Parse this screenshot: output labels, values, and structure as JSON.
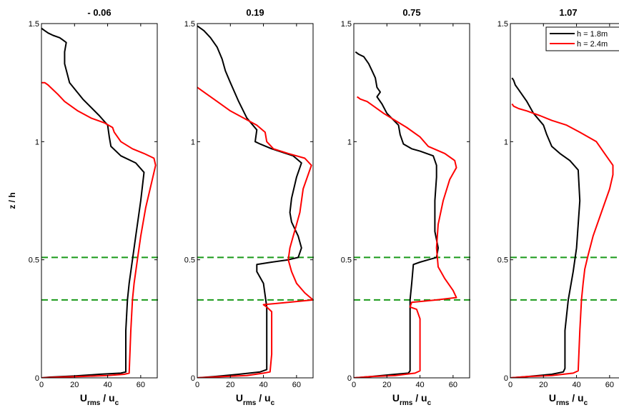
{
  "chart_data": {
    "type": "line",
    "ylabel": "z / h",
    "xlabel_main": "U",
    "xlabel_sub": "rms",
    "xlabel_sep": " / u",
    "xlabel_sub2": "c",
    "xlim": [
      0,
      70
    ],
    "ylim": [
      0,
      1.5
    ],
    "xticks": [
      "0",
      "20",
      "40",
      "60"
    ],
    "xtick_values": [
      0,
      20,
      40,
      60
    ],
    "yticks": [
      "0",
      "0.5",
      "1",
      "1.5"
    ],
    "ytick_values": [
      0,
      0.5,
      1,
      1.5
    ],
    "hlines": [
      0.33,
      0.51
    ],
    "colors": {
      "black": "#000000",
      "red": "#ff0000",
      "green": "#1a9a1a"
    },
    "legend": {
      "placement": "top-right",
      "entries": [
        {
          "label": "h = 1.8m",
          "color": "#000000"
        },
        {
          "label": "h = 2.4m",
          "color": "#ff0000"
        }
      ]
    },
    "panels": [
      {
        "title": "- 0.06",
        "series": [
          {
            "label": "h = 1.8m",
            "color": "#000000",
            "x": [
              0,
              5,
              20,
              35,
              48,
              51,
              51,
              52,
              53,
              55,
              57,
              60,
              62,
              57,
              48,
              42,
              41,
              40,
              35,
              25,
              17,
              14,
              14,
              15,
              13,
              11,
              7,
              4,
              2,
              0
            ],
            "z": [
              0,
              0.003,
              0.008,
              0.015,
              0.02,
              0.025,
              0.2,
              0.33,
              0.4,
              0.5,
              0.6,
              0.75,
              0.87,
              0.91,
              0.94,
              0.98,
              1.02,
              1.07,
              1.11,
              1.18,
              1.25,
              1.33,
              1.38,
              1.42,
              1.43,
              1.44,
              1.45,
              1.46,
              1.47,
              1.48
            ]
          },
          {
            "label": "h = 2.4m",
            "color": "#ff0000",
            "x": [
              0,
              10,
              25,
              40,
              50,
              53,
              54,
              55,
              56,
              58,
              60,
              63,
              67,
              69,
              68,
              62,
              55,
              48,
              44,
              43,
              38,
              30,
              22,
              14,
              10,
              7,
              4,
              2,
              0
            ],
            "z": [
              0,
              0.003,
              0.006,
              0.01,
              0.015,
              0.02,
              0.2,
              0.33,
              0.4,
              0.5,
              0.6,
              0.72,
              0.84,
              0.9,
              0.93,
              0.95,
              0.97,
              1.0,
              1.04,
              1.06,
              1.08,
              1.1,
              1.13,
              1.17,
              1.2,
              1.22,
              1.24,
              1.25,
              1.25
            ]
          }
        ]
      },
      {
        "title": "0.19",
        "series": [
          {
            "label": "h = 1.8m",
            "color": "#000000",
            "x": [
              0,
              10,
              25,
              38,
              42,
              42,
              42,
              41,
              40,
              36,
              36,
              45,
              55,
              61,
              63,
              61,
              57,
              56,
              57,
              60,
              63,
              58,
              45,
              38,
              35,
              36,
              30,
              25,
              20,
              17,
              15,
              12,
              8,
              4,
              0
            ],
            "z": [
              0,
              0.005,
              0.015,
              0.025,
              0.035,
              0.2,
              0.3,
              0.35,
              0.4,
              0.45,
              0.48,
              0.49,
              0.5,
              0.51,
              0.55,
              0.6,
              0.66,
              0.7,
              0.76,
              0.85,
              0.91,
              0.94,
              0.97,
              0.99,
              1.0,
              1.05,
              1.1,
              1.17,
              1.25,
              1.3,
              1.35,
              1.4,
              1.44,
              1.47,
              1.49
            ]
          },
          {
            "label": "h = 2.4m",
            "color": "#ff0000",
            "x": [
              0,
              15,
              30,
              40,
              44,
              45,
              45,
              42,
              40,
              55,
              70,
              65,
              60,
              57,
              55,
              56,
              58,
              60,
              62,
              64,
              68,
              69,
              65,
              55,
              46,
              42,
              41,
              36,
              28,
              20,
              12,
              6,
              2,
              0
            ],
            "z": [
              0,
              0.005,
              0.01,
              0.02,
              0.025,
              0.1,
              0.28,
              0.3,
              0.31,
              0.32,
              0.33,
              0.36,
              0.4,
              0.45,
              0.5,
              0.55,
              0.6,
              0.65,
              0.7,
              0.8,
              0.88,
              0.9,
              0.93,
              0.95,
              0.97,
              1.0,
              1.04,
              1.07,
              1.1,
              1.13,
              1.17,
              1.2,
              1.22,
              1.23
            ]
          }
        ]
      },
      {
        "title": "0.75",
        "series": [
          {
            "label": "h = 1.8m",
            "color": "#000000",
            "x": [
              0,
              10,
              25,
              33,
              34,
              34,
              34,
              35,
              36,
              40,
              45,
              50,
              51,
              49,
              49,
              50,
              50,
              48,
              40,
              35,
              30,
              28,
              27,
              20,
              17,
              14,
              16,
              14,
              13,
              11,
              9,
              6,
              3,
              1
            ],
            "z": [
              0,
              0.005,
              0.015,
              0.02,
              0.03,
              0.2,
              0.33,
              0.4,
              0.48,
              0.49,
              0.5,
              0.51,
              0.55,
              0.62,
              0.75,
              0.85,
              0.9,
              0.94,
              0.96,
              0.97,
              0.99,
              1.03,
              1.07,
              1.12,
              1.16,
              1.19,
              1.21,
              1.23,
              1.27,
              1.3,
              1.33,
              1.36,
              1.37,
              1.38
            ]
          },
          {
            "label": "h = 2.4m",
            "color": "#ff0000",
            "x": [
              0,
              10,
              25,
              37,
              40,
              40,
              38,
              34,
              35,
              50,
              62,
              60,
              55,
              51,
              50,
              51,
              54,
              58,
              62,
              61,
              55,
              45,
              40,
              32,
              25,
              18,
              12,
              8,
              4,
              2
            ],
            "z": [
              0,
              0.005,
              0.01,
              0.02,
              0.03,
              0.25,
              0.29,
              0.3,
              0.32,
              0.33,
              0.34,
              0.37,
              0.42,
              0.47,
              0.55,
              0.65,
              0.75,
              0.84,
              0.89,
              0.92,
              0.95,
              0.98,
              1.02,
              1.06,
              1.09,
              1.12,
              1.15,
              1.17,
              1.18,
              1.19
            ]
          }
        ]
      },
      {
        "title": "1.07",
        "series": [
          {
            "label": "h = 1.8m",
            "color": "#000000",
            "x": [
              0,
              10,
              25,
              32,
              33,
              33,
              35,
              38,
              40,
              41,
              42,
              41,
              36,
              30,
              25,
              22,
              20,
              14,
              10,
              7,
              5,
              3,
              2,
              1
            ],
            "z": [
              0,
              0.005,
              0.015,
              0.025,
              0.04,
              0.2,
              0.33,
              0.45,
              0.55,
              0.65,
              0.75,
              0.88,
              0.92,
              0.95,
              0.98,
              1.03,
              1.07,
              1.12,
              1.17,
              1.2,
              1.22,
              1.24,
              1.26,
              1.27
            ]
          },
          {
            "label": "h = 2.4m",
            "color": "#ff0000",
            "x": [
              0,
              10,
              25,
              38,
              41,
              42,
              43,
              44,
              45,
              47,
              50,
              55,
              60,
              62,
              62,
              57,
              52,
              42,
              34,
              25,
              18,
              10,
              5,
              2,
              1
            ],
            "z": [
              0,
              0.005,
              0.01,
              0.02,
              0.03,
              0.2,
              0.33,
              0.4,
              0.46,
              0.52,
              0.6,
              0.7,
              0.8,
              0.86,
              0.9,
              0.95,
              1.0,
              1.04,
              1.07,
              1.09,
              1.11,
              1.13,
              1.14,
              1.15,
              1.16
            ]
          }
        ]
      }
    ]
  }
}
